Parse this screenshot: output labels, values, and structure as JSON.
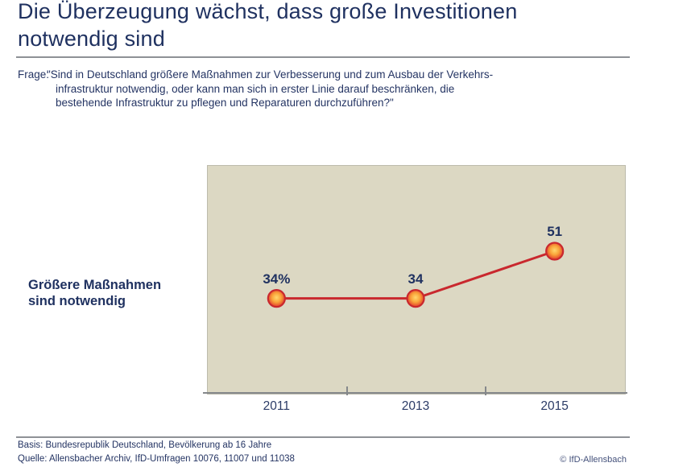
{
  "header": {
    "title": "Die Überzeugung wächst, dass große Investitionen\nnotwendig sind"
  },
  "question": {
    "label": "Frage:",
    "text": "\"Sind in Deutschland größere Maßnahmen zur Verbesserung und zum Ausbau der Verkehrs-\ninfrastruktur notwendig, oder kann man sich in erster Linie darauf beschränken, die\nbestehende Infrastruktur zu pflegen und Reparaturen durchzuführen?\""
  },
  "chart_data": {
    "type": "line",
    "title": "Die Überzeugung wächst, dass große Investitionen notwendig sind",
    "series_label": "Größere Maßnahmen\nsind notwendig",
    "categories": [
      "2011",
      "2013",
      "2015"
    ],
    "values": [
      34,
      34,
      51
    ],
    "point_labels": [
      "34%",
      "34",
      "51"
    ],
    "xlabel": "",
    "ylabel": "",
    "ylim": [
      0,
      82
    ],
    "grid": false,
    "legend": "none",
    "line_color": "#c9282e",
    "plot_background": "#dcd8c3",
    "marker_gradient": [
      {
        "offset": "0%",
        "color": "#ffd76e"
      },
      {
        "offset": "45%",
        "color": "#f9a43a"
      },
      {
        "offset": "80%",
        "color": "#e8542f"
      },
      {
        "offset": "100%",
        "color": "#d92f2b"
      }
    ]
  },
  "colors": {
    "navy_text": "#1f3160",
    "rule_gray": "#8e9196",
    "axis_gray": "#85888b"
  },
  "footer": {
    "basis": "Basis: Bundesrepublik Deutschland, Bevölkerung ab 16 Jahre",
    "source": "Quelle: Allensbacher Archiv, IfD-Umfragen 10076, 11007 und 11038",
    "copyright": "© IfD-Allensbach"
  }
}
